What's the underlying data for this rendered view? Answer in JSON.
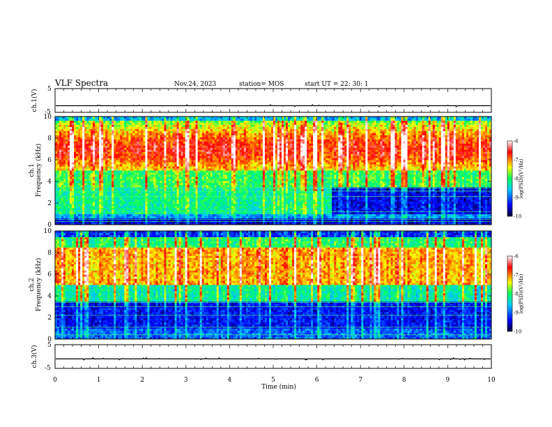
{
  "header": {
    "title": "VLF Spectra",
    "date": "Nov.24, 2023",
    "station": "station= MOS",
    "start": "start  UT =   22: 30: 1"
  },
  "chart_data": [
    {
      "type": "line",
      "name": "ch1-waveform",
      "ylabel": "ch.1(V)",
      "ylim": [
        -5,
        5
      ],
      "yticks": [
        "5",
        "-5"
      ],
      "xlim": [
        0,
        10
      ],
      "level": -2.2
    },
    {
      "type": "heatmap",
      "name": "ch1-spectrogram",
      "ylabel": "ch.1\nFrequency (kHz)",
      "ylabel_lines": [
        "ch.1",
        "Frequency (kHz)"
      ],
      "ylim": [
        0,
        10
      ],
      "yticks": [
        "0",
        "2",
        "4",
        "6",
        "8",
        "10"
      ],
      "xlim": [
        0,
        10
      ],
      "colorbar": {
        "label": "log(PSD)(V²/Hz)",
        "range": [
          -10,
          -6
        ],
        "ticks": [
          "-6",
          "-7",
          "-8",
          "-9",
          "-10"
        ]
      }
    },
    {
      "type": "heatmap",
      "name": "ch2-spectrogram",
      "ylabel_lines": [
        "ch.2",
        "Frequency (kHz)"
      ],
      "ylim": [
        0,
        10
      ],
      "yticks": [
        "0",
        "2",
        "4",
        "6",
        "8",
        "10"
      ],
      "xlim": [
        0,
        10
      ],
      "colorbar": {
        "label": "log(PSD)(V²/Hz)",
        "range": [
          -10,
          -6
        ],
        "ticks": [
          "-6",
          "-7",
          "-8",
          "-9",
          "-10"
        ]
      }
    },
    {
      "type": "line",
      "name": "ch3-waveform",
      "ylabel": "ch.3(V)",
      "ylim": [
        -5,
        5
      ],
      "yticks": [
        "5",
        "-5"
      ],
      "xlim": [
        0,
        10
      ],
      "level": -1.0
    }
  ],
  "xaxis": {
    "label": "Time  (min)",
    "ticks": [
      "0",
      "1",
      "2",
      "3",
      "4",
      "5",
      "6",
      "7",
      "8",
      "9",
      "10"
    ]
  },
  "colors": {
    "colormap": [
      "#000030",
      "#0000ff",
      "#00c8ff",
      "#00ff60",
      "#ffff00",
      "#ff0000",
      "#ffffff"
    ]
  }
}
